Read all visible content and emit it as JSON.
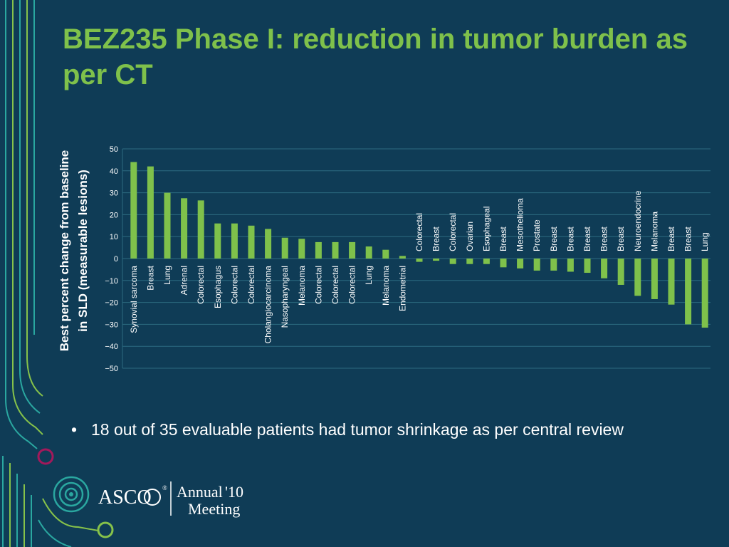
{
  "slide": {
    "title": "BEZ235 Phase I: reduction in tumor burden as per CT",
    "bullet": "18 out of 35 evaluable patients had tumor shrinkage as per central review",
    "colors": {
      "background": "#0f3c56",
      "title": "#7fc14b",
      "bar": "#7fc14b",
      "text": "#ffffff",
      "accent_teal": "#2aa7a0",
      "accent_green": "#86c24a",
      "accent_magenta": "#a3195b"
    }
  },
  "logo": {
    "organization": "ASCO",
    "event": "Annual",
    "year": "'10",
    "event_line2": "Meeting",
    "registered": "®"
  },
  "chart_data": {
    "type": "bar",
    "title": "",
    "xlabel": "",
    "ylabel": "Best percent change from baseline in SLD (measurable lesions)",
    "ylabel_lines": [
      "Best percent change from baseline",
      "in SLD (measurable lesions)"
    ],
    "ylim": [
      -50,
      50
    ],
    "yticks": [
      50,
      40,
      30,
      20,
      10,
      0,
      -10,
      -20,
      -30,
      -40,
      -50
    ],
    "ytick_labels": [
      "50",
      "40",
      "30",
      "20",
      "10",
      "0",
      "−10",
      "−20",
      "−30",
      "−40",
      "−50"
    ],
    "grid": true,
    "categories": [
      "Synovial sarcoma",
      "Breast",
      "Lung",
      "Adrenal",
      "Colorectal",
      "Esophagus",
      "Colorectal",
      "Colorectal",
      "Cholangiocarcinoma",
      "Nasopharyngeal",
      "Melanoma",
      "Colorectal",
      "Colorectal",
      "Colorectal",
      "Lung",
      "Melanoma",
      "Endometrial",
      "Colorectal",
      "Breast",
      "Colorectal",
      "Ovarian",
      "Esophageal",
      "Breast",
      "Mesothelioma",
      "Prostate",
      "Breast",
      "Breast",
      "Breast",
      "Breast",
      "Breast",
      "Neuroendocrine",
      "Melanoma",
      "Breast",
      "Breast",
      "Lung"
    ],
    "values": [
      44,
      42,
      30,
      27.5,
      26.5,
      16,
      16,
      15,
      13.5,
      9.5,
      9,
      7.5,
      7.5,
      7.5,
      5.5,
      4,
      1.2,
      -1.5,
      -1,
      -2.5,
      -2.5,
      -2.5,
      -4,
      -4.5,
      -5.5,
      -5.5,
      -6,
      -6.5,
      -9,
      -12,
      -17,
      -18.5,
      -21,
      -30,
      -31.5
    ]
  }
}
